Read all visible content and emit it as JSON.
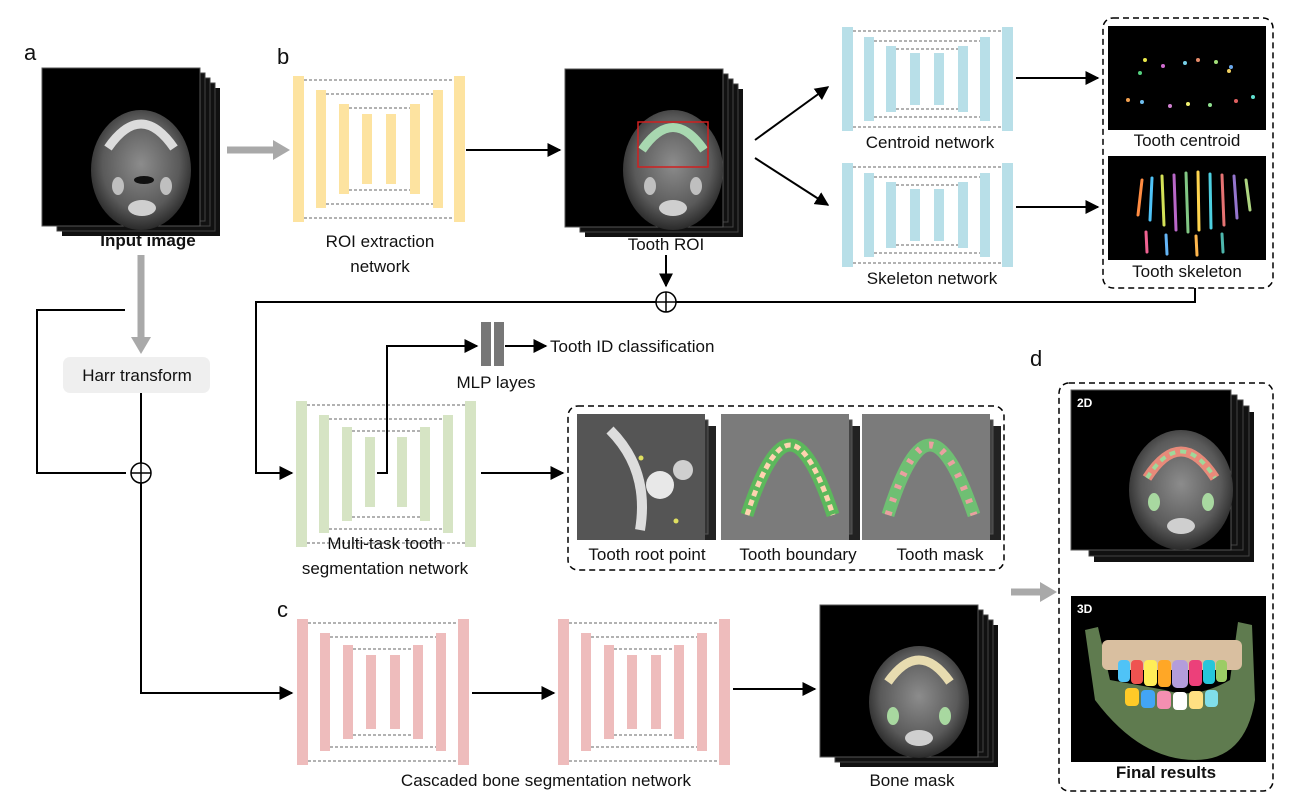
{
  "panels": {
    "a": "a",
    "b": "b",
    "c": "c",
    "d": "d"
  },
  "labels": {
    "input_image": "Input image",
    "roi_line1": "ROI extraction",
    "roi_line2": "network",
    "tooth_roi": "Tooth ROI",
    "centroid_network": "Centroid network",
    "skeleton_network": "Skeleton network",
    "tooth_centroid": "Tooth centroid",
    "tooth_skeleton": "Tooth skeleton",
    "harr_transform": "Harr transform",
    "mlp_layers": "MLP layes",
    "tooth_id": "Tooth ID classification",
    "multitask_line1": "Multi-task tooth",
    "multitask_line2": "segmentation network",
    "tooth_root_point": "Tooth root point",
    "tooth_boundary": "Tooth boundary",
    "tooth_mask": "Tooth mask",
    "cascaded_bone": "Cascaded bone segmentation network",
    "bone_mask": "Bone mask",
    "tag_2d": "2D",
    "tag_3d": "3D",
    "final_results": "Final results"
  },
  "colors": {
    "roi_network": "#fde3a0",
    "centroid_network": "#b8dfe8",
    "multitask_network": "#d6e4c4",
    "bone_network": "#eebcbc",
    "gray_arrow": "#a9a9a9"
  }
}
